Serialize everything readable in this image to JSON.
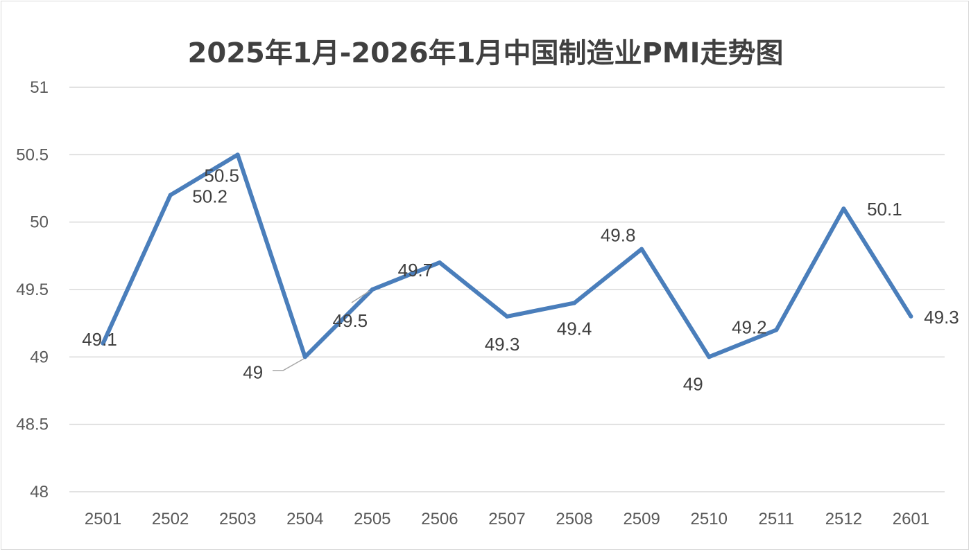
{
  "chart_data": {
    "type": "line",
    "title": "2025年1月-2026年1月中国制造业PMI走势图",
    "xlabel": "",
    "ylabel": "",
    "categories": [
      "2501",
      "2502",
      "2503",
      "2504",
      "2505",
      "2506",
      "2507",
      "2508",
      "2509",
      "2510",
      "2511",
      "2512",
      "2601"
    ],
    "series": [
      {
        "name": "PMI",
        "values": [
          49.1,
          50.2,
          50.5,
          49.0,
          49.5,
          49.7,
          49.3,
          49.4,
          49.8,
          49.0,
          49.2,
          50.1,
          49.3
        ],
        "color": "#4a7ebb"
      }
    ],
    "data_labels": [
      "49.1",
      "50.2",
      "50.5",
      "49",
      "49.5",
      "49.7",
      "49.3",
      "49.4",
      "49.8",
      "49",
      "49.2",
      "50.1",
      "49.3"
    ],
    "ylim": [
      48,
      51
    ],
    "yticks": [
      "48",
      "48.5",
      "49",
      "49.5",
      "50",
      "50.5",
      "51"
    ],
    "grid": true,
    "legend": "none"
  }
}
